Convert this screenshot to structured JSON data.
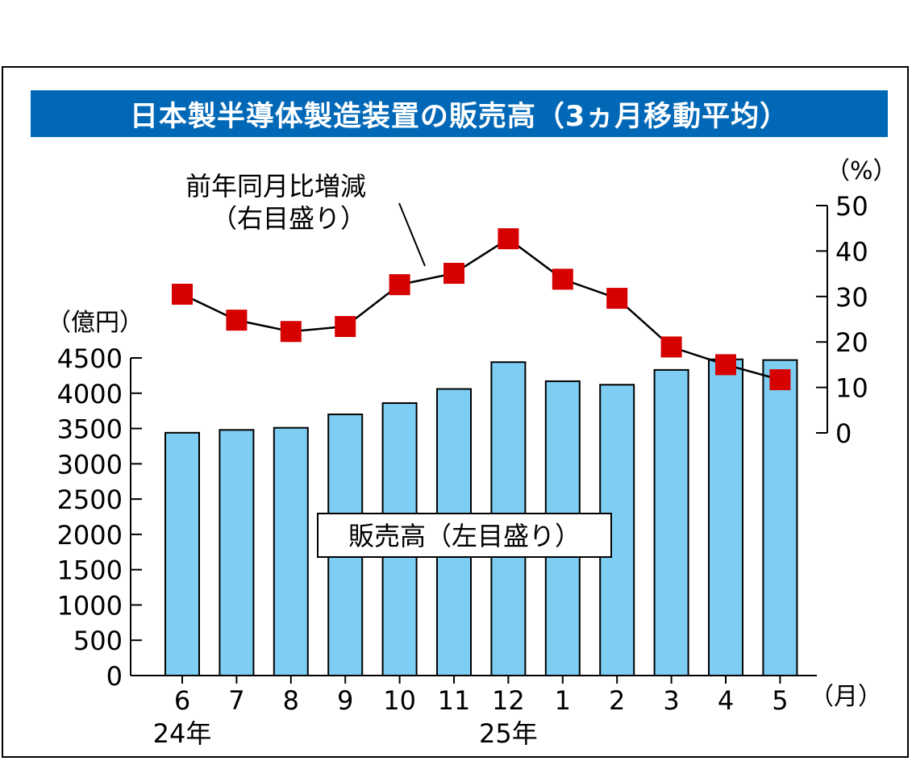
{
  "title": "日本製半導体製造装置の販売高（3ヵ月移動平均）",
  "colors": {
    "title_bg": "#0068b7",
    "bar": "#7ecef4",
    "marker": "#d70000",
    "line": "#000000"
  },
  "chart_data": {
    "type": "bar",
    "categories": [
      "6",
      "7",
      "8",
      "9",
      "10",
      "11",
      "12",
      "1",
      "2",
      "3",
      "4",
      "5"
    ],
    "x_unit": "（月）",
    "year_labels": [
      {
        "text": "24年",
        "category_index": 0
      },
      {
        "text": "25年",
        "category_index": 6
      }
    ],
    "series": [
      {
        "name": "販売高（左目盛り）",
        "axis": "left",
        "kind": "bar",
        "values": [
          3440,
          3480,
          3510,
          3700,
          3860,
          4060,
          4440,
          4170,
          4120,
          4330,
          4480,
          4470
        ]
      },
      {
        "name": "前年同月比増減（右目盛り）",
        "axis": "right",
        "kind": "line",
        "values": [
          30.5,
          24.8,
          22.3,
          23.4,
          32.6,
          35.1,
          42.7,
          33.8,
          29.6,
          18.9,
          15.0,
          11.7
        ]
      }
    ],
    "left_axis": {
      "unit": "（億円）",
      "ylim": [
        0,
        4500
      ],
      "ticks": [
        "0",
        "500",
        "1000",
        "1500",
        "2000",
        "2500",
        "3000",
        "3500",
        "4000",
        "4500"
      ]
    },
    "right_axis": {
      "unit": "（%）",
      "ylim": [
        0,
        50
      ],
      "ticks": [
        "0",
        "10",
        "20",
        "30",
        "40",
        "50"
      ]
    },
    "annotations": {
      "line_label": [
        "前年同月比増減",
        "（右目盛り）"
      ],
      "bar_label": "販売高（左目盛り）"
    }
  }
}
